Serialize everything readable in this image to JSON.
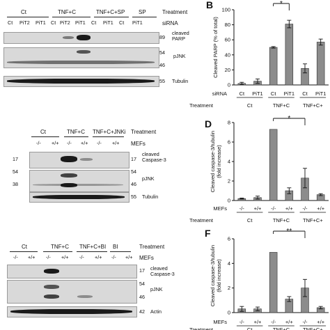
{
  "panel_a": {
    "treatment_groups": [
      "Ct",
      "TNF+C",
      "TNF+C+SP",
      "SP"
    ],
    "treatment_label": "Treatment",
    "sirna_lanes": [
      "Ct",
      "PiT2",
      "PiT1",
      "Ct",
      "PiT2",
      "PiT1",
      "Ct",
      "PiT1",
      "Ct",
      "PiT1"
    ],
    "sirna_label": "siRNA",
    "markers": [
      {
        "mw": "89",
        "name": "cleaved\nPARP"
      },
      {
        "mw": "54\n46",
        "name": "pJNK"
      },
      {
        "mw": "55",
        "name": "Tubulin"
      }
    ]
  },
  "panel_c": {
    "treatment_groups": [
      "Ct",
      "TNF+C",
      "TNF+C+JNKi"
    ],
    "treatment_label": "Treatment",
    "mefs_lanes": [
      "-/-",
      "+/+",
      "-/-",
      "+/+",
      "-/-",
      "+/+"
    ],
    "mefs_label": "MEFs",
    "left_mw": [
      "17",
      "54",
      "38"
    ],
    "right_mw": [
      "17",
      "54",
      "46",
      "55"
    ],
    "names": [
      "cleaved\nCaspase-3",
      "pJNK",
      "Tubulin"
    ]
  },
  "panel_e": {
    "treatment_groups": [
      "Ct",
      "TNF+C",
      "TNF+C+BI",
      "BI"
    ],
    "treatment_label": "Treatment",
    "mefs_lanes": [
      "-/-",
      "+/+",
      "-/-",
      "+/+",
      "-/-",
      "+/+",
      "-/-",
      "+/+"
    ],
    "mefs_label": "MEFs",
    "right_mw": [
      "17",
      "54",
      "46",
      "42"
    ],
    "names": [
      "cleaved\nCaspase-3",
      "pJNK",
      "Actin"
    ]
  },
  "chart_data": [
    {
      "panel": "B",
      "type": "bar",
      "ylabel": "Cleaved PARP (% of total)",
      "ylim": [
        0,
        100
      ],
      "yticks": [
        "0",
        "20",
        "40",
        "60",
        "80",
        "100"
      ],
      "row1_label": "siRNA",
      "row2_label": "Treatment",
      "categories": [
        "Ct",
        "PiT1",
        "Ct",
        "PiT1",
        "Ct",
        "PiT1"
      ],
      "groups": [
        "Ct",
        "TNF+C",
        "TNF+C+"
      ],
      "values": [
        2,
        5,
        50,
        81,
        22,
        57
      ],
      "errors": [
        1.5,
        3,
        1,
        5,
        6,
        4
      ],
      "significance": "*"
    },
    {
      "panel": "D",
      "type": "bar",
      "ylabel": "Cleaved caspase-3/tubulin\n(fold increase)",
      "ylim": [
        0,
        8
      ],
      "yticks": [
        "0",
        "2",
        "4",
        "6",
        "8"
      ],
      "row1_label": "MEFs",
      "row2_label": "Treatment",
      "categories": [
        "-/-",
        "+/+",
        "-/-",
        "+/+",
        "-/-",
        "+/+"
      ],
      "groups": [
        "Ct",
        "TNF+C",
        "TNF+C+"
      ],
      "values": [
        0.2,
        0.3,
        7.3,
        1.0,
        2.3,
        0.6
      ],
      "errors": [
        0.05,
        0.15,
        0,
        0.3,
        1.0,
        0.1
      ],
      "significance": "*"
    },
    {
      "panel": "F",
      "type": "bar",
      "ylabel": "Cleaved caspase-3/tubulin\n(fold increase)",
      "ylim": [
        0,
        6
      ],
      "yticks": [
        "0",
        "2",
        "4",
        "6"
      ],
      "row1_label": "MEFs",
      "row2_label": "Treatment",
      "categories": [
        "-/-",
        "+/+",
        "-/-",
        "+/+",
        "-/-",
        "+/+"
      ],
      "groups": [
        "Ct",
        "TNF+C",
        "TNF+C+"
      ],
      "values": [
        0.3,
        0.3,
        4.9,
        1.1,
        2.0,
        0.4
      ],
      "errors": [
        0.2,
        0.15,
        0,
        0.2,
        0.7,
        0.1
      ],
      "significance": "**"
    }
  ]
}
